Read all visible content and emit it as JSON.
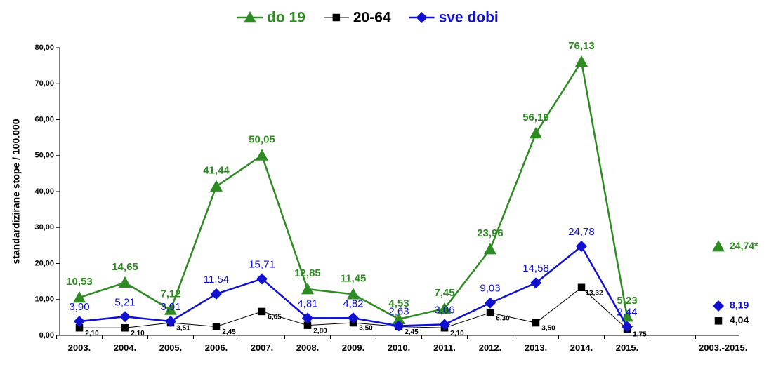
{
  "chart_data": {
    "type": "line",
    "ylabel": "standardizirane stope / 100.000",
    "categories": [
      "2003.",
      "2004.",
      "2005.",
      "2006.",
      "2007.",
      "2008.",
      "2009.",
      "2010.",
      "2011.",
      "2012.",
      "2013.",
      "2014.",
      "2015.",
      null,
      "2003.-2015."
    ],
    "series": [
      {
        "name": "do 19",
        "color": "#2e8b22",
        "marker": "triangle",
        "values": [
          10.53,
          14.65,
          7.12,
          41.44,
          50.05,
          12.85,
          11.45,
          4.53,
          7.45,
          23.96,
          56.19,
          76.13,
          5.23,
          null,
          24.74
        ],
        "value_labels": [
          "10,53",
          "14,65",
          "7,12",
          "41,44",
          "50,05",
          "12,85",
          "11,45",
          "4,53",
          "7,45",
          "23,96",
          "56,19",
          "76,13",
          "5,23",
          null,
          "24,74*"
        ]
      },
      {
        "name": "20-64",
        "color": "#000000",
        "marker": "square",
        "values": [
          2.1,
          2.1,
          3.51,
          2.45,
          6.65,
          2.8,
          3.5,
          2.45,
          2.1,
          6.3,
          3.5,
          13.32,
          1.75,
          null,
          4.04
        ],
        "value_labels": [
          "2,10",
          "2,10",
          "3,51",
          "2,45",
          "6,65",
          "2,80",
          "3,50",
          "2,45",
          "2,10",
          "6,30",
          "3,50",
          "13,32",
          "1,75",
          null,
          "4,04"
        ]
      },
      {
        "name": "sve dobi",
        "color": "#1010d0",
        "marker": "diamond",
        "values": [
          3.9,
          5.21,
          3.91,
          11.54,
          15.71,
          4.81,
          4.82,
          2.63,
          3.06,
          9.03,
          14.58,
          24.78,
          2.44,
          null,
          8.19
        ],
        "value_labels": [
          "3,90",
          "5,21",
          "3,91",
          "11,54",
          "15,71",
          "4,81",
          "4,82",
          "2,63",
          "3,06",
          "9,03",
          "14,58",
          "24,78",
          "2,44",
          null,
          "8,19"
        ]
      }
    ],
    "ylim": [
      0,
      80
    ],
    "yticks": [
      {
        "value": 0,
        "label": "0,00"
      },
      {
        "value": 10,
        "label": "10,00"
      },
      {
        "value": 20,
        "label": "20,00"
      },
      {
        "value": 30,
        "label": "30,00"
      },
      {
        "value": 40,
        "label": "40,00"
      },
      {
        "value": 50,
        "label": "50,00"
      },
      {
        "value": 60,
        "label": "60,00"
      },
      {
        "value": 70,
        "label": "70,00"
      },
      {
        "value": 80,
        "label": "80,00"
      }
    ],
    "legend": "top"
  }
}
